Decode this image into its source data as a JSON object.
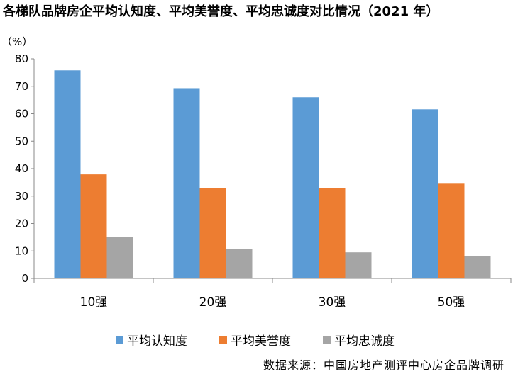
{
  "title": "各梯队品牌房企平均认知度、平均美誉度、平均忠诚度对比情况（2021 年）",
  "source": "数据来源：中国房地产测评中心房企品牌调研",
  "chart_data": {
    "type": "bar",
    "ylabel": "（%）",
    "xlabel": "",
    "ylim": [
      0,
      80
    ],
    "yticks": [
      0,
      10,
      20,
      30,
      40,
      50,
      60,
      70,
      80
    ],
    "grid": false,
    "legend": "bottom",
    "categories": [
      "10强",
      "20强",
      "30强",
      "50强"
    ],
    "series": [
      {
        "name": "平均认知度",
        "color": "#5B9BD5",
        "values": [
          75.8,
          69.3,
          66.0,
          61.6
        ]
      },
      {
        "name": "平均美誉度",
        "color": "#ED7D31",
        "values": [
          37.9,
          33.0,
          33.0,
          34.5
        ]
      },
      {
        "name": "平均忠诚度",
        "color": "#A5A5A5",
        "values": [
          15.0,
          10.8,
          9.5,
          8.0
        ]
      }
    ]
  }
}
